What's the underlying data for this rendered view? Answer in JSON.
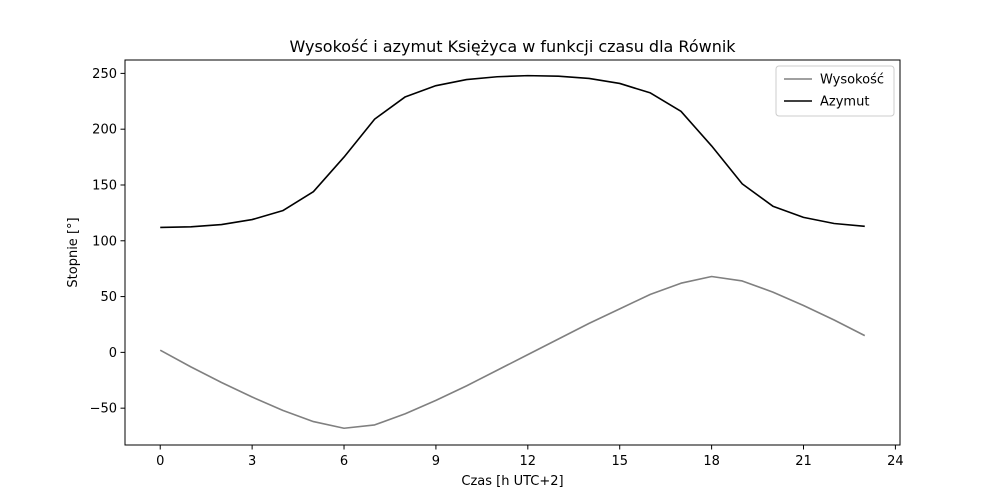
{
  "chart_data": {
    "type": "line",
    "title": "Wysokość i azymut Księżyca w funkcji czasu dla Równik",
    "xlabel": "Czas [h UTC+2]",
    "ylabel": "Stopnie [°]",
    "xlim": [
      -1.15,
      24.15
    ],
    "ylim": [
      -83,
      262
    ],
    "xticks": [
      0,
      3,
      6,
      9,
      12,
      15,
      18,
      21,
      24
    ],
    "yticks": [
      -50,
      0,
      50,
      100,
      150,
      200,
      250
    ],
    "ytick_labels": [
      "−50",
      "0",
      "50",
      "100",
      "150",
      "200",
      "250"
    ],
    "legend_position": "top-right",
    "grid": false,
    "x": [
      0,
      1,
      2,
      3,
      4,
      5,
      6,
      7,
      8,
      9,
      10,
      11,
      12,
      13,
      14,
      15,
      16,
      17,
      18,
      19,
      20,
      21,
      22,
      23
    ],
    "series": [
      {
        "name": "Wysokość",
        "color": "#808080",
        "values": [
          2,
          -13,
          -27,
          -40,
          -52,
          -62,
          -68,
          -65,
          -55,
          -43,
          -30,
          -16,
          -2,
          12,
          26,
          39,
          52,
          62,
          68,
          64,
          54,
          42,
          29,
          15
        ]
      },
      {
        "name": "Azymut",
        "color": "#000000",
        "values": [
          112,
          112.5,
          114.5,
          119,
          127,
          144,
          175,
          209,
          229,
          239,
          244.5,
          247,
          248,
          247.5,
          245.5,
          241,
          232.5,
          216,
          185,
          151,
          131,
          121,
          115.5,
          113
        ]
      }
    ]
  }
}
